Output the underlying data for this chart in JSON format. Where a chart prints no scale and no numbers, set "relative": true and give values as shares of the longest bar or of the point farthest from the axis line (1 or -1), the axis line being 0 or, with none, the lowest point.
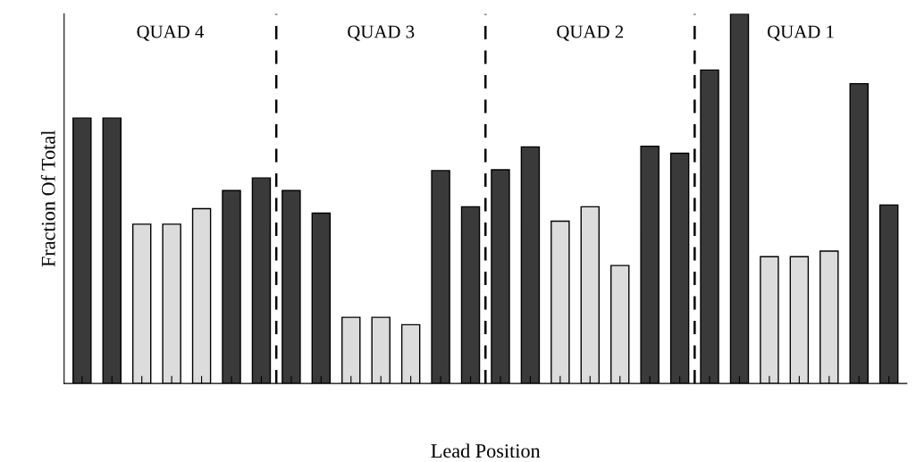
{
  "chart_data": {
    "type": "bar",
    "relative": true,
    "xlabel": "Lead Position",
    "ylabel": "Fraction Of Total",
    "categories": [
      null,
      null,
      null,
      null,
      null,
      null,
      null,
      null,
      null,
      null,
      null,
      null,
      null,
      null,
      null,
      null,
      null,
      null,
      null,
      null,
      null,
      null,
      null,
      null,
      null,
      null,
      null,
      null
    ],
    "values": [
      0.718,
      0.718,
      0.431,
      0.431,
      0.473,
      0.522,
      0.556,
      0.522,
      0.461,
      0.179,
      0.179,
      0.159,
      0.576,
      0.478,
      0.578,
      0.64,
      0.439,
      0.478,
      0.319,
      0.642,
      0.623,
      0.848,
      1,
      0.343,
      0.343,
      0.358,
      0.811,
      0.483
    ],
    "colors": [
      "#3a3a3a",
      "#3a3a3a",
      "#dcdcdc",
      "#dcdcdc",
      "#dcdcdc",
      "#3a3a3a",
      "#3a3a3a",
      "#3a3a3a",
      "#3a3a3a",
      "#dcdcdc",
      "#dcdcdc",
      "#dcdcdc",
      "#3a3a3a",
      "#3a3a3a",
      "#3a3a3a",
      "#3a3a3a",
      "#dcdcdc",
      "#dcdcdc",
      "#dcdcdc",
      "#3a3a3a",
      "#3a3a3a",
      "#3a3a3a",
      "#3a3a3a",
      "#dcdcdc",
      "#dcdcdc",
      "#dcdcdc",
      "#3a3a3a",
      "#3a3a3a"
    ],
    "annotations": [
      "QUAD 4",
      "QUAD 3",
      "QUAD 2",
      "QUAD 1"
    ],
    "grid": false,
    "legend": false
  }
}
